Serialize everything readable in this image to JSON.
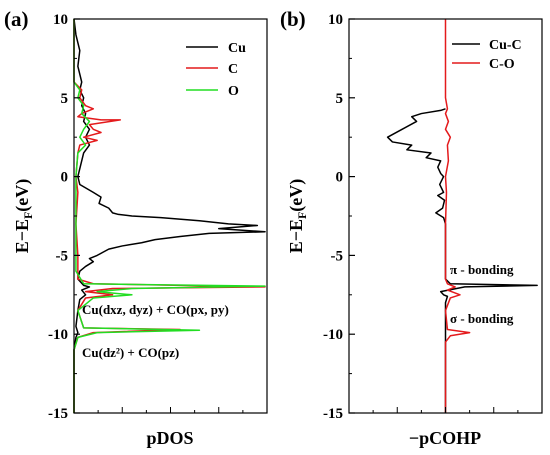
{
  "panels": [
    {
      "letter": "(a)",
      "xlabel": "pDOS",
      "ylabel_main": "E−E",
      "ylabel_sub": "F",
      "ylabel_unit": "(eV)",
      "ylim": [
        -15,
        10
      ],
      "yticks": [
        10,
        5,
        0,
        -5,
        -10,
        -15
      ],
      "legend": [
        "Cu",
        "C",
        "O"
      ],
      "annotations": [
        {
          "text": "Cu(dxz, dyz) + CO(px, py)",
          "y": -8.3
        },
        {
          "text": "Cu(dz²) + CO(pz)",
          "y": -11.2
        }
      ]
    },
    {
      "letter": "(b)",
      "xlabel": "−pCOHP",
      "ylabel_main": "E−E",
      "ylabel_sub": "F",
      "ylabel_unit": "(eV)",
      "ylim": [
        -15,
        10
      ],
      "yticks": [
        10,
        5,
        0,
        -5,
        -10,
        -15
      ],
      "legend": [
        "Cu-C",
        "C-O"
      ],
      "annotations": [
        {
          "text": "π  - bonding",
          "y": -6.0
        },
        {
          "text": "σ  - bonding",
          "y": -9.0
        }
      ]
    }
  ],
  "colors": {
    "Cu": "#000000",
    "C": "#e41a1c",
    "O": "#22dd22",
    "Cu-C": "#000000",
    "C-O": "#e41a1c"
  },
  "chart_data": [
    {
      "type": "line",
      "title": "",
      "xlabel": "pDOS",
      "ylabel": "E−EF(eV)",
      "ylim": [
        -15,
        10
      ],
      "xlim": [
        0,
        1
      ],
      "orientation": "vertical",
      "series": [
        {
          "name": "Cu",
          "points": [
            [
              0,
              10
            ],
            [
              0.01,
              9
            ],
            [
              0.02,
              8.5
            ],
            [
              0.03,
              8
            ],
            [
              0.02,
              7
            ],
            [
              0.04,
              6
            ],
            [
              0.03,
              5.5
            ],
            [
              0.05,
              5
            ],
            [
              0.04,
              4.5
            ],
            [
              0.06,
              4
            ],
            [
              0.05,
              3.5
            ],
            [
              0.08,
              3
            ],
            [
              0.06,
              2.5
            ],
            [
              0.08,
              2
            ],
            [
              0.05,
              1.5
            ],
            [
              0.04,
              1
            ],
            [
              0.03,
              0.5
            ],
            [
              0.02,
              0
            ],
            [
              0.03,
              -0.5
            ],
            [
              0.1,
              -1
            ],
            [
              0.14,
              -1.3
            ],
            [
              0.13,
              -1.7
            ],
            [
              0.18,
              -2
            ],
            [
              0.2,
              -2.3
            ],
            [
              0.23,
              -2.4
            ],
            [
              0.3,
              -2.5
            ],
            [
              0.45,
              -2.6
            ],
            [
              0.65,
              -2.8
            ],
            [
              0.8,
              -3
            ],
            [
              0.95,
              -3.1
            ],
            [
              0.75,
              -3.3
            ],
            [
              0.99,
              -3.5
            ],
            [
              0.7,
              -3.6
            ],
            [
              0.55,
              -3.8
            ],
            [
              0.42,
              -4.0
            ],
            [
              0.35,
              -4.2
            ],
            [
              0.25,
              -4.4
            ],
            [
              0.18,
              -4.6
            ],
            [
              0.15,
              -4.8
            ],
            [
              0.12,
              -5.0
            ],
            [
              0.08,
              -5.2
            ],
            [
              0.1,
              -5.4
            ],
            [
              0.06,
              -5.7
            ],
            [
              0.03,
              -6
            ],
            [
              0.02,
              -6.5
            ],
            [
              0.05,
              -6.9
            ],
            [
              0.08,
              -7.0
            ],
            [
              0.04,
              -7.2
            ],
            [
              0.06,
              -7.5
            ],
            [
              0.03,
              -7.8
            ],
            [
              0.02,
              -8.5
            ],
            [
              0.01,
              -9.5
            ],
            [
              0.02,
              -9.9
            ],
            [
              0.01,
              -10.2
            ],
            [
              0.0,
              -11
            ],
            [
              0.0,
              -15
            ]
          ]
        },
        {
          "name": "C",
          "points": [
            [
              0,
              10
            ],
            [
              0.0,
              6
            ],
            [
              0.04,
              5.5
            ],
            [
              0.03,
              5
            ],
            [
              0.06,
              4.5
            ],
            [
              0.1,
              4.3
            ],
            [
              0.04,
              4
            ],
            [
              0.02,
              3.8
            ],
            [
              0.14,
              3.6
            ],
            [
              0.24,
              3.6
            ],
            [
              0.08,
              3.3
            ],
            [
              0.1,
              3
            ],
            [
              0.14,
              2.8
            ],
            [
              0.05,
              2.5
            ],
            [
              0.12,
              2.3
            ],
            [
              0.03,
              2
            ],
            [
              0.02,
              1.5
            ],
            [
              0.01,
              0
            ],
            [
              0.02,
              -1
            ],
            [
              0.01,
              -3
            ],
            [
              0.02,
              -5
            ],
            [
              0.02,
              -6.5
            ],
            [
              0.1,
              -6.8
            ],
            [
              0.99,
              -7.0
            ],
            [
              0.2,
              -7.1
            ],
            [
              0.06,
              -7.3
            ],
            [
              0.2,
              -7.5
            ],
            [
              0.06,
              -7.7
            ],
            [
              0.02,
              -8.5
            ],
            [
              0.05,
              -9.6
            ],
            [
              0.55,
              -9.7
            ],
            [
              0.1,
              -9.9
            ],
            [
              0.02,
              -10.2
            ],
            [
              0.0,
              -11
            ],
            [
              0.0,
              -15
            ]
          ]
        },
        {
          "name": "O",
          "points": [
            [
              0,
              10
            ],
            [
              0.0,
              6
            ],
            [
              0.03,
              5.5
            ],
            [
              0.02,
              5
            ],
            [
              0.05,
              4.5
            ],
            [
              0.04,
              4
            ],
            [
              0.08,
              3.5
            ],
            [
              0.05,
              3
            ],
            [
              0.03,
              2.5
            ],
            [
              0.06,
              2
            ],
            [
              0.02,
              1.5
            ],
            [
              0.01,
              0
            ],
            [
              0.01,
              -3
            ],
            [
              0.01,
              -6
            ],
            [
              0.05,
              -6.8
            ],
            [
              0.99,
              -6.95
            ],
            [
              0.3,
              -7.1
            ],
            [
              0.12,
              -7.3
            ],
            [
              0.3,
              -7.5
            ],
            [
              0.1,
              -7.7
            ],
            [
              0.02,
              -8.5
            ],
            [
              0.05,
              -9.6
            ],
            [
              0.65,
              -9.75
            ],
            [
              0.12,
              -9.9
            ],
            [
              0.02,
              -10.2
            ],
            [
              0.0,
              -11
            ],
            [
              0.0,
              -15
            ]
          ]
        }
      ]
    },
    {
      "type": "line",
      "title": "",
      "xlabel": "−pCOHP",
      "ylabel": "E−EF(eV)",
      "ylim": [
        -15,
        10
      ],
      "xlim": [
        -1,
        1
      ],
      "orientation": "vertical",
      "series": [
        {
          "name": "Cu-C",
          "points": [
            [
              0,
              4.3
            ],
            [
              -0.05,
              4.2
            ],
            [
              -0.25,
              4.0
            ],
            [
              -0.35,
              3.8
            ],
            [
              -0.3,
              3.5
            ],
            [
              -0.45,
              3.0
            ],
            [
              -0.6,
              2.5
            ],
            [
              -0.55,
              2.2
            ],
            [
              -0.35,
              2.0
            ],
            [
              -0.4,
              1.7
            ],
            [
              -0.15,
              1.5
            ],
            [
              -0.2,
              1.2
            ],
            [
              -0.05,
              1.0
            ],
            [
              -0.08,
              0.6
            ],
            [
              -0.05,
              0.2
            ],
            [
              -0.02,
              0
            ],
            [
              -0.06,
              -0.5
            ],
            [
              -0.02,
              -1.0
            ],
            [
              -0.08,
              -1.2
            ],
            [
              -0.01,
              -1.5
            ],
            [
              -0.03,
              -2.0
            ],
            [
              -0.1,
              -2.3
            ],
            [
              -0.02,
              -2.6
            ],
            [
              0,
              -3.0
            ],
            [
              0.0,
              -6.5
            ],
            [
              0.05,
              -6.8
            ],
            [
              0.95,
              -6.9
            ],
            [
              0.2,
              -7.0
            ],
            [
              -0.05,
              -7.3
            ],
            [
              -0.02,
              -7.5
            ],
            [
              0.02,
              -7.6
            ],
            [
              0.0,
              -8.0
            ],
            [
              0.0,
              -15
            ]
          ]
        },
        {
          "name": "C-O",
          "points": [
            [
              0,
              10
            ],
            [
              0,
              5
            ],
            [
              0.02,
              4.3
            ],
            [
              0.0,
              4.0
            ],
            [
              0.03,
              3.5
            ],
            [
              0.0,
              3.0
            ],
            [
              0.05,
              2.5
            ],
            [
              0.02,
              2.0
            ],
            [
              0.03,
              1.0
            ],
            [
              0.0,
              0
            ],
            [
              0.01,
              -1.0
            ],
            [
              0.0,
              -3.0
            ],
            [
              0.0,
              -6.5
            ],
            [
              0.02,
              -6.8
            ],
            [
              0.1,
              -7.0
            ],
            [
              0.02,
              -7.2
            ],
            [
              0.15,
              -7.5
            ],
            [
              0.05,
              -7.7
            ],
            [
              0.0,
              -8.5
            ],
            [
              0.02,
              -9.7
            ],
            [
              0.25,
              -9.9
            ],
            [
              0.05,
              -10.1
            ],
            [
              0.0,
              -10.5
            ],
            [
              0.0,
              -15
            ]
          ]
        }
      ]
    }
  ]
}
